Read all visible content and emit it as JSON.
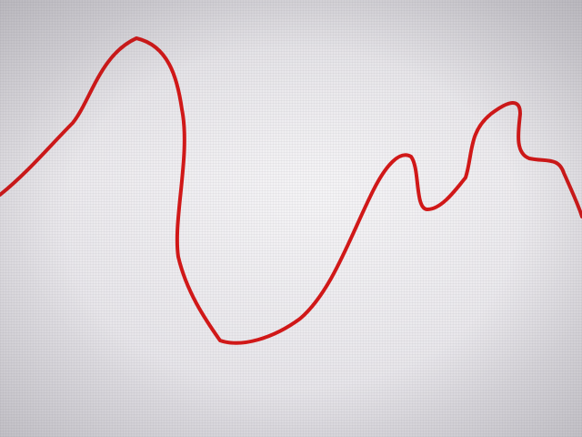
{
  "screen": {
    "background_color": "#e6e4e8",
    "stroke_color": "#d01818"
  }
}
